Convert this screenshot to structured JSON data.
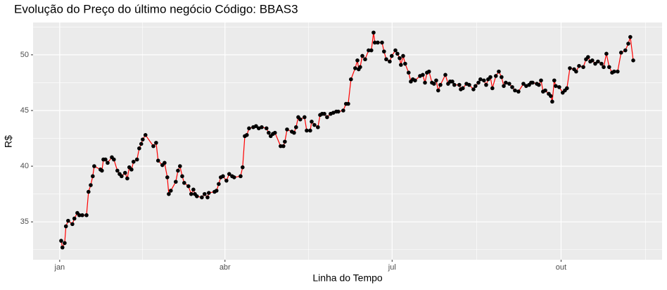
{
  "chart_data": {
    "type": "line",
    "title": "Evolução do Preço do último negócio Código: BBAS3",
    "x_label": "Linha do Tempo",
    "y_label": "R$",
    "x": [
      0.8,
      1.5,
      2.7,
      3.4,
      4.6,
      6.9,
      8.0,
      9.6,
      10.7,
      12.3,
      14.6,
      15.7,
      16.9,
      18.0,
      18.8,
      22.2,
      23.0,
      23.8,
      24.9,
      26.1,
      28.4,
      29.5,
      31.4,
      32.6,
      33.7,
      35.6,
      36.8,
      37.9,
      39.1,
      40.2,
      42.1,
      43.3,
      44.4,
      45.2,
      46.7,
      51.0,
      52.5,
      53.6,
      55.9,
      57.1,
      58.6,
      59.4,
      60.5,
      63.2,
      64.4,
      65.5,
      66.7,
      67.8,
      70.1,
      71.6,
      72.8,
      73.6,
      74.7,
      77.4,
      78.9,
      80.5,
      81.2,
      84.3,
      85.4,
      86.6,
      87.7,
      88.9,
      90.8,
      92.3,
      93.9,
      95.0,
      98.5,
      99.6,
      100.8,
      101.9,
      103.1,
      105.4,
      106.9,
      108.4,
      110.0,
      112.6,
      113.8,
      114.9,
      116.1,
      117.2,
      120.3,
      121.8,
      122.6,
      123.8,
      126.4,
      127.6,
      128.7,
      129.9,
      131.0,
      133.3,
      134.5,
      136.4,
      137.2,
      138.7,
      140.6,
      141.8,
      142.9,
      144.1,
      145.6,
      147.5,
      149.0,
      150.6,
      151.7,
      154.4,
      155.9,
      157.1,
      158.6,
      160.9,
      162.1,
      162.8,
      163.6,
      164.8,
      166.3,
      168.2,
      169.7,
      170.9,
      171.6,
      173.2,
      175.5,
      176.6,
      177.8,
      179.7,
      180.8,
      182.8,
      183.9,
      185.1,
      185.8,
      187.0,
      188.1,
      190.0,
      191.2,
      192.3,
      193.5,
      196.2,
      197.7,
      198.9,
      200.0,
      201.1,
      202.7,
      203.8,
      205.0,
      206.1,
      207.3,
      210.0,
      211.5,
      212.6,
      213.8,
      214.9,
      217.6,
      218.4,
      219.5,
      221.5,
      223.0,
      225.3,
      226.4,
      228.0,
      229.1,
      231.0,
      232.2,
      233.3,
      234.5,
      235.6,
      237.5,
      239.1,
      240.6,
      241.8,
      242.9,
      244.8,
      246.4,
      247.9,
      249.8,
      252.5,
      254.0,
      255.6,
      256.7,
      257.5,
      259.8,
      260.9,
      262.1,
      263.2,
      264.4,
      266.3,
      267.4,
      268.2,
      269.3,
      270.1,
      272.0,
      273.9,
      275.1,
      276.2,
      277.8,
      280.1,
      281.2,
      282.8,
      285.1,
      286.6,
      287.7,
      288.9,
      290.0,
      291.6,
      293.1,
      295.0,
      296.2,
      297.7,
      299.2,
      300.8,
      301.9,
      303.8,
      305.7,
      308.0,
      309.6,
      310.7,
      312.3
    ],
    "series": [
      {
        "color": "#ff0000",
        "point_color": "#000000",
        "values": [
          33.3,
          32.7,
          33.1,
          34.6,
          35.1,
          34.8,
          35.3,
          35.8,
          35.6,
          35.6,
          35.6,
          37.7,
          38.3,
          39.1,
          40.0,
          39.7,
          39.6,
          40.6,
          40.6,
          40.3,
          40.8,
          40.6,
          39.6,
          39.3,
          39.1,
          39.4,
          38.9,
          39.9,
          39.7,
          40.4,
          40.6,
          41.6,
          42.0,
          42.4,
          42.8,
          41.8,
          42.1,
          40.5,
          40.1,
          40.3,
          39.0,
          37.5,
          37.8,
          38.6,
          39.6,
          40.0,
          39.1,
          38.5,
          38.2,
          37.5,
          37.9,
          37.5,
          37.3,
          37.2,
          37.5,
          37.2,
          37.6,
          37.7,
          37.8,
          38.4,
          39.0,
          39.1,
          38.7,
          39.3,
          39.1,
          39.0,
          39.1,
          39.9,
          42.7,
          42.8,
          43.4,
          43.5,
          43.6,
          43.4,
          43.5,
          43.4,
          43.0,
          42.7,
          42.9,
          43.0,
          41.8,
          41.8,
          42.2,
          43.3,
          43.1,
          43.0,
          43.5,
          44.4,
          44.2,
          44.4,
          43.2,
          43.2,
          44.0,
          43.7,
          43.5,
          44.6,
          44.7,
          44.7,
          44.4,
          44.7,
          44.8,
          44.9,
          44.9,
          45.0,
          45.6,
          45.6,
          47.8,
          48.8,
          49.5,
          48.7,
          48.9,
          49.9,
          49.6,
          50.4,
          50.4,
          52.0,
          51.1,
          51.1,
          51.1,
          50.3,
          49.6,
          49.4,
          49.9,
          50.4,
          50.1,
          49.7,
          49.1,
          49.9,
          49.2,
          48.4,
          47.6,
          47.8,
          47.7,
          48.1,
          48.2,
          47.5,
          48.4,
          48.5,
          47.5,
          47.4,
          47.7,
          46.8,
          47.3,
          48.2,
          47.4,
          47.6,
          47.6,
          47.3,
          47.3,
          46.9,
          47.0,
          47.4,
          47.3,
          46.9,
          47.2,
          47.5,
          47.8,
          47.7,
          47.3,
          47.8,
          48.0,
          47.0,
          48.1,
          48.5,
          48.0,
          47.2,
          47.5,
          47.4,
          47.1,
          46.8,
          46.7,
          47.4,
          47.2,
          47.3,
          47.5,
          47.5,
          47.4,
          47.3,
          47.7,
          46.7,
          46.8,
          46.5,
          46.3,
          45.8,
          47.7,
          47.2,
          47.1,
          46.6,
          46.8,
          47.0,
          48.8,
          48.7,
          48.5,
          49.0,
          48.9,
          49.6,
          49.8,
          49.4,
          49.5,
          49.2,
          49.4,
          49.2,
          48.9,
          50.1,
          48.9,
          48.4,
          48.5,
          48.5,
          50.2,
          50.4,
          51.0,
          51.6,
          49.5
        ]
      }
    ],
    "xlim": [
      -14.5,
      328
    ],
    "xticks": [
      {
        "value": 0,
        "label": "jan"
      },
      {
        "value": 90,
        "label": "abr"
      },
      {
        "value": 181,
        "label": "jul"
      },
      {
        "value": 273,
        "label": "out"
      }
    ],
    "ylim": [
      31.6,
      52.9
    ],
    "yticks": [
      35,
      40,
      45,
      50
    ],
    "grid": true,
    "panel_color": "#ebebeb"
  }
}
